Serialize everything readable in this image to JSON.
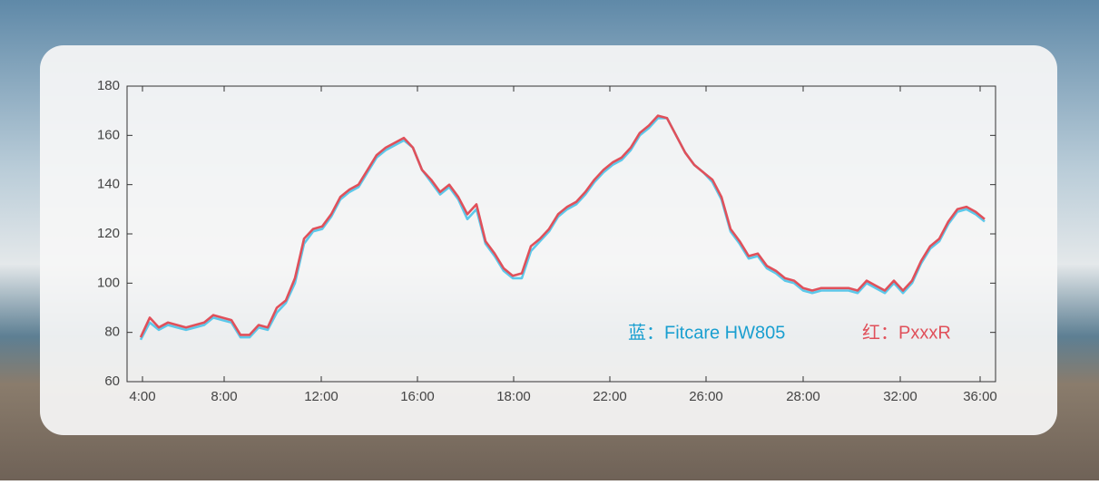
{
  "chart_data": {
    "type": "line",
    "series": [
      {
        "name": "Fitcare HW805",
        "color": "#5cc8ea",
        "values": [
          77,
          84,
          81,
          83,
          82,
          81,
          82,
          83,
          86,
          85,
          84,
          78,
          78,
          82,
          81,
          88,
          92,
          100,
          116,
          121,
          122,
          127,
          134,
          137,
          139,
          145,
          151,
          154,
          156,
          158,
          155,
          146,
          141,
          136,
          139,
          134,
          126,
          130,
          116,
          111,
          105,
          102,
          102,
          113,
          117,
          121,
          127,
          130,
          132,
          136,
          141,
          145,
          148,
          150,
          154,
          160,
          163,
          167,
          167,
          160,
          153,
          148,
          145,
          141,
          134,
          121,
          116,
          110,
          111,
          106,
          104,
          101,
          100,
          97,
          96,
          97,
          97,
          97,
          97,
          96,
          100,
          98,
          96,
          100,
          96,
          100,
          108,
          114,
          117,
          124,
          129,
          130,
          128,
          125
        ]
      },
      {
        "name": "PxxxR",
        "color": "#e0505a",
        "values": [
          78,
          86,
          82,
          84,
          83,
          82,
          83,
          84,
          87,
          86,
          85,
          79,
          79,
          83,
          82,
          90,
          93,
          102,
          118,
          122,
          123,
          128,
          135,
          138,
          140,
          146,
          152,
          155,
          157,
          159,
          155,
          146,
          142,
          137,
          140,
          135,
          128,
          132,
          117,
          112,
          106,
          103,
          104,
          115,
          118,
          122,
          128,
          131,
          133,
          137,
          142,
          146,
          149,
          151,
          155,
          161,
          164,
          168,
          167,
          160,
          153,
          148,
          145,
          142,
          135,
          122,
          117,
          111,
          112,
          107,
          105,
          102,
          101,
          98,
          97,
          98,
          98,
          98,
          98,
          97,
          101,
          99,
          97,
          101,
          97,
          101,
          109,
          115,
          118,
          125,
          130,
          131,
          129,
          126
        ]
      }
    ],
    "annotations": [
      "蓝：Fitcare HW805",
      "红：PxxxR"
    ],
    "ylim": [
      60,
      180
    ],
    "yticks": [
      60,
      80,
      100,
      120,
      140,
      160,
      180
    ],
    "xlim": [
      -1.5,
      94.2
    ],
    "xticks": [
      {
        "value": 0.2,
        "label": "4:00"
      },
      {
        "value": 9.2,
        "label": "8:00"
      },
      {
        "value": 19.9,
        "label": "12:00"
      },
      {
        "value": 30.5,
        "label": "16:00"
      },
      {
        "value": 41.1,
        "label": "18:00"
      },
      {
        "value": 51.7,
        "label": "22:00"
      },
      {
        "value": 62.3,
        "label": "26:00"
      },
      {
        "value": 73,
        "label": "28:00"
      },
      {
        "value": 83.7,
        "label": "32:00"
      },
      {
        "value": 92.5,
        "label": "36:00"
      }
    ]
  }
}
